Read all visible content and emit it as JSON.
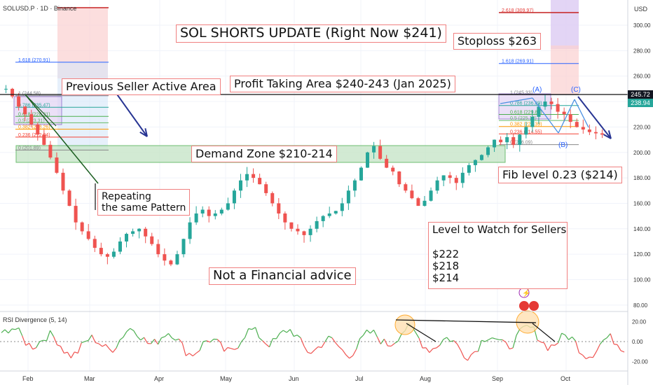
{
  "header": {
    "symbol": "SOLUSD.P · 1D · Binance",
    "currency": "USD"
  },
  "price_axis": {
    "ticks": [
      "300.00",
      "280.00",
      "260.00",
      "240.00",
      "220.00",
      "200.00",
      "180.00",
      "160.00",
      "140.00",
      "120.00",
      "100.00",
      "80.00"
    ],
    "last_price": "238.94",
    "line_price": "245.72"
  },
  "rsi_axis": {
    "ticks": [
      "20.00",
      "0.00",
      "-20.00"
    ],
    "label": "RSI Divergence (5, 14)"
  },
  "time_axis": [
    "Feb",
    "Mar",
    "Apr",
    "May",
    "Jun",
    "Jul",
    "Aug",
    "Sep",
    "Oct"
  ],
  "annotations": {
    "title": "SOL SHORTS UPDATE (Right Now $241)",
    "stoploss": "Stoploss $263",
    "profit": "Profit Taking Area $240-243 (Jan  2025)",
    "seller": "Previous Seller Active Area",
    "demand": "Demand Zone $210-214",
    "fib": "Fib level 0.23 ($214)",
    "repeat": "Repeating\nthe same Pattern",
    "watch": "Level to Watch for Sellers\n\n$222\n$218\n$214",
    "disclaimer": "Not a Financial advice"
  },
  "fib_left": [
    "1.618 (270.91)",
    "1 (244.58)",
    "0.786 (235.47)",
    "0.618 (228.31)",
    "0.5 (223.31)",
    "0.382 (218.26)",
    "0.236 (212.04)",
    "0 (201.89)"
  ],
  "fib_right": [
    "2.618 (309.97)",
    "1.618 (269.91)",
    "1 (245.33)",
    "0.786 (236.89)",
    "0.618 (229.85)",
    "0.5 (225.12)",
    "0.382 (220.39)",
    "0.236 (214.55)",
    "0 (206.09)"
  ],
  "waves": [
    "(A)",
    "(B)",
    "(C)"
  ],
  "colors": {
    "up": "#26a69a",
    "down": "#ef5350",
    "demand": "#4caf50",
    "rsi_up": "#4caf50",
    "rsi_down": "#ef5350"
  },
  "chart_data": {
    "type": "line",
    "price_series_close": [
      250,
      244,
      236,
      230,
      222,
      214,
      206,
      196,
      184,
      170,
      158,
      145,
      138,
      132,
      125,
      120,
      118,
      122,
      130,
      136,
      138,
      140,
      134,
      128,
      120,
      115,
      112,
      120,
      132,
      145,
      152,
      155,
      150,
      152,
      155,
      160,
      170,
      178,
      183,
      180,
      175,
      168,
      160,
      152,
      145,
      140,
      138,
      135,
      140,
      146,
      150,
      152,
      154,
      160,
      170,
      178,
      188,
      200,
      205,
      195,
      188,
      185,
      175,
      170,
      164,
      158,
      162,
      170,
      178,
      182,
      180,
      176,
      184,
      190,
      194,
      198,
      204,
      210,
      208,
      212,
      206,
      214,
      220,
      228,
      236,
      240,
      238,
      232,
      230,
      224,
      220,
      218,
      216,
      215,
      214
    ],
    "key_levels": [
      222,
      218,
      214
    ],
    "demand_zone": [
      210,
      214
    ],
    "stoploss": 263,
    "current_price": 241,
    "rsi_ylim": [
      -25,
      25
    ]
  }
}
